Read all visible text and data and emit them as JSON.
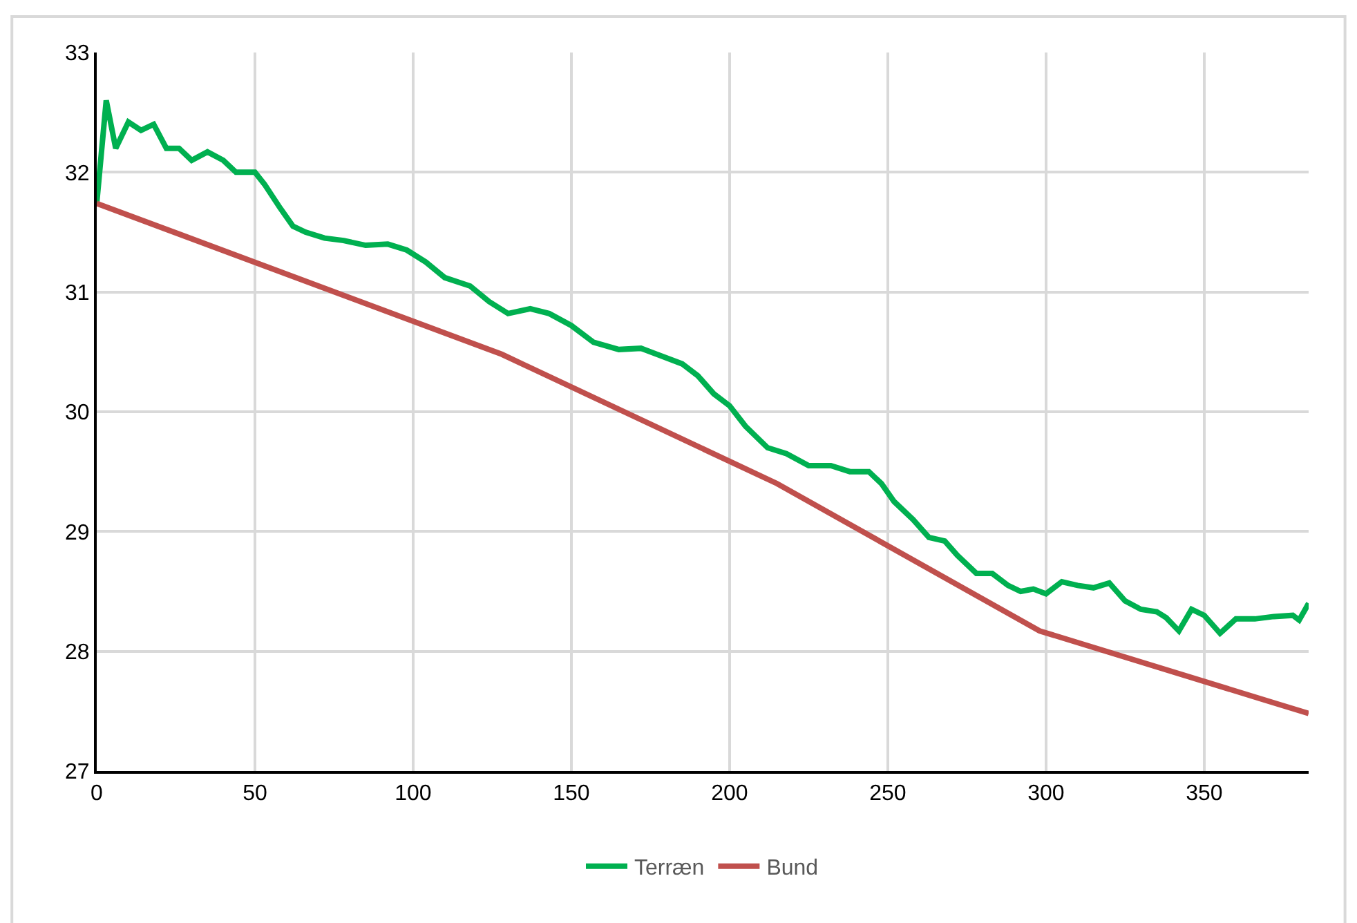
{
  "chart_data": {
    "type": "line",
    "xlim": [
      0,
      383
    ],
    "xticks": [
      0,
      50,
      100,
      150,
      200,
      250,
      300,
      350
    ],
    "ylim": [
      27,
      33
    ],
    "yticks": [
      27,
      28,
      29,
      30,
      31,
      32,
      33
    ],
    "grid": true,
    "legend": "bottom",
    "marker": "none",
    "line_style": "solid",
    "series": [
      {
        "name": "Terræn",
        "color": "#00b050",
        "x": [
          0,
          3,
          6,
          10,
          14,
          18,
          22,
          26,
          30,
          35,
          40,
          44,
          50,
          53,
          58,
          62,
          66,
          72,
          78,
          85,
          92,
          98,
          104,
          110,
          118,
          124,
          130,
          137,
          143,
          150,
          157,
          165,
          172,
          178,
          185,
          190,
          195,
          200,
          205,
          212,
          218,
          225,
          232,
          238,
          244,
          248,
          252,
          258,
          263,
          268,
          272,
          278,
          283,
          288,
          292,
          296,
          300,
          305,
          310,
          315,
          320,
          325,
          330,
          335,
          338,
          342,
          346,
          350,
          355,
          360,
          366,
          372,
          378,
          380,
          383
        ],
        "values": [
          31.74,
          32.6,
          32.2,
          32.42,
          32.35,
          32.4,
          32.2,
          32.2,
          32.1,
          32.17,
          32.1,
          32.0,
          32.0,
          31.9,
          31.7,
          31.55,
          31.5,
          31.45,
          31.43,
          31.39,
          31.4,
          31.35,
          31.25,
          31.12,
          31.05,
          30.92,
          30.82,
          30.86,
          30.82,
          30.72,
          30.58,
          30.52,
          30.53,
          30.47,
          30.4,
          30.3,
          30.15,
          30.05,
          29.88,
          29.7,
          29.65,
          29.55,
          29.55,
          29.5,
          29.5,
          29.4,
          29.25,
          29.1,
          28.95,
          28.92,
          28.8,
          28.65,
          28.65,
          28.55,
          28.5,
          28.52,
          28.48,
          28.58,
          28.55,
          28.53,
          28.57,
          28.42,
          28.35,
          28.33,
          28.28,
          28.17,
          28.35,
          28.3,
          28.15,
          28.27,
          28.27,
          28.29,
          28.3,
          28.26,
          28.4
        ]
      },
      {
        "name": "Bund",
        "color": "#c0504d",
        "x": [
          0,
          128,
          215,
          298,
          383
        ],
        "values": [
          31.74,
          30.48,
          29.4,
          28.17,
          27.48
        ]
      }
    ]
  }
}
